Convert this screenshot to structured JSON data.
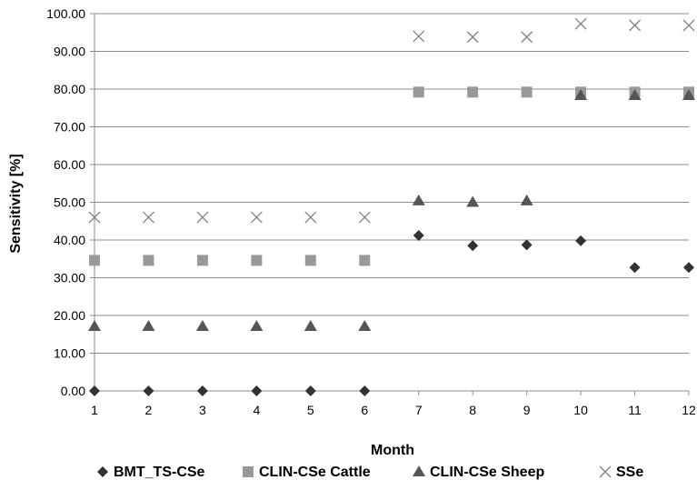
{
  "chart_data": {
    "type": "scatter",
    "xlabel": "Month",
    "ylabel": "Sensitivity [%]",
    "x": [
      1,
      2,
      3,
      4,
      5,
      6,
      7,
      8,
      9,
      10,
      11,
      12
    ],
    "x_tick_labels": [
      "1",
      "2",
      "3",
      "4",
      "5",
      "6",
      "7",
      "8",
      "9",
      "10",
      "11",
      "12"
    ],
    "ylim": [
      0,
      100
    ],
    "y_ticks": [
      0,
      10,
      20,
      30,
      40,
      50,
      60,
      70,
      80,
      90,
      100
    ],
    "y_tick_labels": [
      "0.00",
      "10.00",
      "20.00",
      "30.00",
      "40.00",
      "50.00",
      "60.00",
      "70.00",
      "80.00",
      "90.00",
      "100.00"
    ],
    "grid": "horizontal",
    "legend_position": "bottom",
    "series": [
      {
        "name": "BMT_TS-CSe",
        "marker": "diamond",
        "color": "#333333",
        "values": [
          0,
          0,
          0,
          0,
          0,
          0,
          41.2,
          38.5,
          38.7,
          39.8,
          32.7,
          32.7
        ]
      },
      {
        "name": "CLIN-CSe Cattle",
        "marker": "square",
        "color": "#999999",
        "values": [
          34.6,
          34.6,
          34.6,
          34.6,
          34.6,
          34.6,
          79.2,
          79.2,
          79.2,
          79.2,
          79.2,
          79.2
        ]
      },
      {
        "name": "CLIN-CSe Sheep",
        "marker": "triangle",
        "color": "#555555",
        "values": [
          17.1,
          17.1,
          17.1,
          17.1,
          17.1,
          17.1,
          50.4,
          50.0,
          50.4,
          78.3,
          78.3,
          78.3
        ]
      },
      {
        "name": "SSe",
        "marker": "cross",
        "color": "#808080",
        "values": [
          46.0,
          46.0,
          46.0,
          46.0,
          46.0,
          46.0,
          94.0,
          93.8,
          93.8,
          97.3,
          96.9,
          96.9
        ]
      }
    ]
  }
}
